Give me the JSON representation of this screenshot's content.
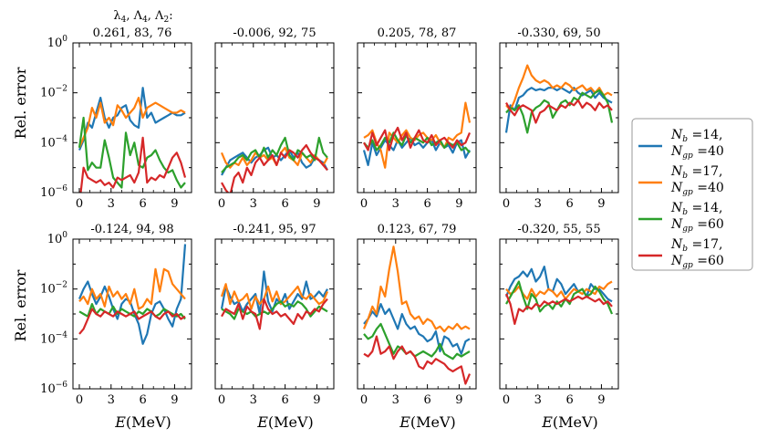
{
  "figure": {
    "ylabel_top": "Rel. error",
    "ylabel_bottom": "Rel. error",
    "xlabel_1": "E(MeV)",
    "xlabel_2": "E(MeV)",
    "xlabel_3": "E(MeV)",
    "xlabel_4": "E(MeV)",
    "header_line1": "λ4, Λ4, Λ2:",
    "header_line2": "0.261, 83, 76"
  },
  "legend": {
    "items": [
      {
        "line1": "Nb =14,",
        "line2": "Ngp =40",
        "color": "#1f77b4"
      },
      {
        "line1": "Nb =17,",
        "line2": "Ngp =40",
        "color": "#ff7f0e"
      },
      {
        "line1": "Nb =14,",
        "line2": "Ngp =60",
        "color": "#2ca02c"
      },
      {
        "line1": "Nb =17,",
        "line2": "Ngp =60",
        "color": "#d62728"
      }
    ]
  },
  "chart_data": {
    "type": "line",
    "yscale": "log",
    "ylim": [
      1e-06,
      1
    ],
    "xlim": [
      -0.6,
      10.6
    ],
    "xticks": [
      0,
      3,
      6,
      9
    ],
    "ytick_labels": [
      "10^0",
      "10^-2",
      "10^-4",
      "10^-6"
    ],
    "ylabel": "Rel. error",
    "xlabel": "E(MeV)",
    "x": [
      0,
      0.4,
      0.8,
      1.2,
      1.6,
      2,
      2.4,
      2.8,
      3.2,
      3.6,
      4,
      4.4,
      4.8,
      5.2,
      5.6,
      6,
      6.4,
      6.8,
      7.2,
      7.6,
      8,
      8.4,
      8.8,
      9.2,
      9.6,
      10
    ],
    "series_names": [
      "Nb=14, Ngp=40",
      "Nb=17, Ngp=40",
      "Nb=14, Ngp=60",
      "Nb=17, Ngp=60"
    ],
    "panels": [
      {
        "title": "0.261, 83, 76",
        "series": [
          [
            -4.3,
            -3.9,
            -3.2,
            -3.4,
            -2.8,
            -2.2,
            -3.0,
            -3.4,
            -3.0,
            -2.9,
            -2.6,
            -2.5,
            -3.1,
            -3.3,
            -3.4,
            -1.8,
            -3.0,
            -2.8,
            -3.2,
            -3.1,
            -3.0,
            -2.9,
            -2.8,
            -2.9,
            -2.9,
            -2.8
          ],
          [
            -4.2,
            -3.8,
            -3.4,
            -2.6,
            -3.0,
            -2.4,
            -3.2,
            -3.0,
            -3.3,
            -2.5,
            -2.7,
            -3.0,
            -2.8,
            -2.6,
            -2.2,
            -3.0,
            -2.6,
            -2.5,
            -2.4,
            -2.5,
            -2.6,
            -2.7,
            -2.8,
            -2.8,
            -2.7,
            -2.8
          ],
          [
            -4.2,
            -3.0,
            -5.1,
            -4.8,
            -5.0,
            -5.0,
            -3.9,
            -4.6,
            -5.4,
            -5.6,
            -5.8,
            -3.6,
            -4.5,
            -4.0,
            -4.9,
            -5.0,
            -4.6,
            -4.5,
            -4.3,
            -4.7,
            -5.0,
            -5.2,
            -5.1,
            -5.5,
            -5.8,
            -5.6
          ],
          [
            -6.5,
            -5.0,
            -5.4,
            -5.5,
            -5.6,
            -5.5,
            -5.7,
            -5.6,
            -5.8,
            -5.4,
            -5.5,
            -5.4,
            -5.3,
            -5.6,
            -5.2,
            -3.8,
            -5.6,
            -5.4,
            -5.5,
            -5.3,
            -5.4,
            -5.0,
            -4.6,
            -4.4,
            -4.8,
            -5.4
          ]
        ]
      },
      {
        "title": "-0.006, 92, 75",
        "series": [
          [
            -5.3,
            -5.0,
            -4.7,
            -4.6,
            -4.5,
            -4.4,
            -4.6,
            -4.8,
            -4.6,
            -4.5,
            -4.3,
            -4.2,
            -4.6,
            -4.5,
            -4.7,
            -4.5,
            -4.3,
            -4.6,
            -4.4,
            -4.8,
            -5.0,
            -4.9,
            -4.6,
            -4.7,
            -4.8,
            -5.1
          ],
          [
            -4.4,
            -4.8,
            -5.0,
            -4.8,
            -4.9,
            -4.6,
            -4.9,
            -4.7,
            -4.4,
            -4.6,
            -4.5,
            -4.7,
            -4.6,
            -4.9,
            -4.4,
            -4.2,
            -4.6,
            -4.7,
            -4.9,
            -4.4,
            -4.6,
            -4.8,
            -4.5,
            -4.7,
            -4.9,
            -4.6
          ],
          [
            -5.2,
            -5.0,
            -4.9,
            -4.8,
            -4.6,
            -4.5,
            -4.7,
            -4.4,
            -4.3,
            -4.6,
            -4.2,
            -4.6,
            -4.3,
            -4.5,
            -4.1,
            -3.8,
            -4.5,
            -4.7,
            -4.3,
            -4.4,
            -4.6,
            -4.5,
            -4.7,
            -3.8,
            -4.4,
            -4.6
          ],
          [
            -5.6,
            -5.9,
            -6.1,
            -5.4,
            -5.2,
            -5.6,
            -5.0,
            -5.3,
            -4.8,
            -4.6,
            -4.9,
            -4.7,
            -4.5,
            -4.9,
            -4.4,
            -4.6,
            -4.3,
            -4.4,
            -4.6,
            -4.3,
            -4.1,
            -4.4,
            -4.6,
            -4.7,
            -4.9,
            -5.1
          ]
        ]
      },
      {
        "title": "0.205, 78, 87",
        "series": [
          [
            -4.3,
            -4.9,
            -4.0,
            -4.5,
            -4.2,
            -3.9,
            -4.1,
            -4.3,
            -3.9,
            -4.2,
            -4.0,
            -3.8,
            -4.1,
            -4.0,
            -4.2,
            -4.0,
            -3.9,
            -4.3,
            -4.0,
            -4.2,
            -4.1,
            -4.4,
            -4.0,
            -3.9,
            -4.6,
            -4.3
          ],
          [
            -3.8,
            -3.7,
            -3.5,
            -4.0,
            -4.3,
            -5.0,
            -3.6,
            -3.8,
            -4.0,
            -3.7,
            -3.5,
            -3.8,
            -3.9,
            -3.7,
            -3.6,
            -3.8,
            -3.9,
            -3.7,
            -4.0,
            -4.2,
            -3.8,
            -3.9,
            -3.7,
            -3.6,
            -2.4,
            -3.2
          ],
          [
            -4.0,
            -4.2,
            -3.9,
            -4.3,
            -4.1,
            -3.8,
            -4.0,
            -3.6,
            -3.9,
            -4.1,
            -3.7,
            -4.0,
            -3.8,
            -3.9,
            -4.0,
            -3.8,
            -4.1,
            -4.0,
            -3.9,
            -4.2,
            -4.0,
            -4.1,
            -4.0,
            -4.3,
            -4.2,
            -4.4
          ],
          [
            -4.0,
            -4.3,
            -3.6,
            -4.1,
            -3.8,
            -3.5,
            -4.3,
            -3.7,
            -3.4,
            -3.9,
            -3.6,
            -4.2,
            -3.8,
            -3.5,
            -3.9,
            -4.0,
            -3.7,
            -4.1,
            -3.9,
            -3.8,
            -4.0,
            -4.2,
            -3.9,
            -4.1,
            -4.0,
            -3.6
          ]
        ]
      },
      {
        "title": "-0.330, 69, 50",
        "series": [
          [
            -3.6,
            -2.5,
            -2.7,
            -2.2,
            -2.1,
            -1.9,
            -1.8,
            -1.9,
            -1.85,
            -1.9,
            -1.8,
            -1.8,
            -1.9,
            -1.8,
            -1.9,
            -2.0,
            -1.8,
            -2.0,
            -2.1,
            -2.0,
            -1.9,
            -2.2,
            -2.0,
            -2.2,
            -2.3,
            -2.4
          ],
          [
            -2.5,
            -2.7,
            -2.3,
            -1.8,
            -1.4,
            -0.9,
            -1.3,
            -1.5,
            -1.6,
            -1.5,
            -1.6,
            -1.8,
            -1.7,
            -1.8,
            -1.6,
            -1.7,
            -1.9,
            -1.8,
            -1.7,
            -1.9,
            -1.8,
            -2.0,
            -1.8,
            -2.1,
            -2.0,
            -2.1
          ],
          [
            -2.8,
            -2.6,
            -2.7,
            -2.5,
            -2.9,
            -3.6,
            -2.8,
            -2.6,
            -2.5,
            -2.3,
            -2.4,
            -3.0,
            -2.7,
            -2.4,
            -2.3,
            -2.5,
            -2.2,
            -2.3,
            -2.0,
            -2.1,
            -2.2,
            -2.0,
            -1.9,
            -2.1,
            -2.4,
            -3.2
          ],
          [
            -2.4,
            -2.7,
            -2.9,
            -2.6,
            -2.5,
            -2.6,
            -2.7,
            -3.2,
            -2.8,
            -2.7,
            -2.5,
            -2.6,
            -2.7,
            -2.5,
            -2.6,
            -2.4,
            -2.5,
            -2.3,
            -2.6,
            -2.4,
            -2.5,
            -2.7,
            -2.4,
            -2.6,
            -2.5,
            -2.7
          ]
        ]
      },
      {
        "title": "-0.124, 94, 98",
        "series": [
          [
            -2.4,
            -2.0,
            -1.7,
            -2.2,
            -2.6,
            -2.3,
            -1.9,
            -2.3,
            -2.8,
            -3.2,
            -2.6,
            -2.4,
            -2.5,
            -3.0,
            -3.4,
            -4.2,
            -3.8,
            -3.0,
            -2.6,
            -2.5,
            -2.8,
            -3.2,
            -3.5,
            -2.8,
            -2.4,
            -0.2
          ],
          [
            -2.5,
            -2.3,
            -2.6,
            -2.0,
            -2.4,
            -2.2,
            -2.7,
            -1.9,
            -2.3,
            -2.1,
            -2.4,
            -2.2,
            -2.6,
            -2.0,
            -2.8,
            -2.7,
            -2.4,
            -2.6,
            -1.2,
            -2.1,
            -1.2,
            -1.3,
            -1.8,
            -2.0,
            -2.2,
            -2.4
          ],
          [
            -2.9,
            -3.0,
            -3.1,
            -2.6,
            -3.0,
            -2.8,
            -2.9,
            -3.0,
            -2.7,
            -3.0,
            -2.8,
            -2.9,
            -3.0,
            -3.1,
            -2.9,
            -3.0,
            -2.8,
            -2.9,
            -3.1,
            -3.0,
            -2.8,
            -2.9,
            -3.0,
            -3.1,
            -3.0,
            -3.2
          ],
          [
            -3.8,
            -3.6,
            -3.2,
            -2.8,
            -3.0,
            -3.1,
            -2.9,
            -3.0,
            -3.1,
            -2.9,
            -3.0,
            -3.1,
            -3.0,
            -2.9,
            -3.2,
            -3.1,
            -3.0,
            -2.9,
            -3.1,
            -3.2,
            -3.0,
            -2.9,
            -3.1,
            -3.0,
            -3.2,
            -3.1
          ]
        ]
      },
      {
        "title": "-0.241, 95, 97",
        "series": [
          [
            -2.8,
            -1.9,
            -2.3,
            -2.6,
            -2.5,
            -2.9,
            -2.6,
            -2.4,
            -2.2,
            -3.0,
            -1.3,
            -2.5,
            -2.9,
            -2.4,
            -2.6,
            -2.2,
            -2.8,
            -2.5,
            -2.2,
            -2.4,
            -1.7,
            -2.4,
            -2.3,
            -2.1,
            -2.3,
            -2.0
          ],
          [
            -2.3,
            -1.8,
            -2.6,
            -2.1,
            -2.5,
            -2.4,
            -2.2,
            -2.8,
            -2.3,
            -2.6,
            -2.4,
            -1.9,
            -2.5,
            -2.1,
            -2.6,
            -2.5,
            -2.3,
            -2.1,
            -1.9,
            -2.3,
            -2.4,
            -2.2,
            -2.4,
            -2.6,
            -2.5,
            -2.1
          ],
          [
            -2.8,
            -2.9,
            -3.0,
            -3.2,
            -2.8,
            -2.9,
            -3.0,
            -2.9,
            -3.1,
            -3.0,
            -2.9,
            -3.0,
            -2.8,
            -2.6,
            -2.5,
            -2.7,
            -2.6,
            -2.7,
            -2.5,
            -2.6,
            -2.8,
            -3.1,
            -2.9,
            -2.7,
            -2.8,
            -2.9
          ],
          [
            -3.1,
            -2.8,
            -2.9,
            -3.0,
            -2.6,
            -3.2,
            -2.7,
            -2.9,
            -3.0,
            -3.6,
            -2.4,
            -2.8,
            -3.0,
            -2.9,
            -3.1,
            -3.0,
            -3.2,
            -3.4,
            -3.0,
            -3.2,
            -2.9,
            -3.0,
            -2.8,
            -2.9,
            -2.6,
            -2.4
          ]
        ]
      },
      {
        "title": "0.123, 67, 79",
        "series": [
          [
            -3.4,
            -3.2,
            -2.9,
            -3.1,
            -2.6,
            -3.0,
            -2.8,
            -3.2,
            -3.6,
            -3.0,
            -3.4,
            -3.6,
            -3.5,
            -3.8,
            -3.9,
            -4.1,
            -4.0,
            -3.7,
            -4.5,
            -3.9,
            -4.0,
            -4.3,
            -4.2,
            -4.6,
            -4.1,
            -4.0
          ],
          [
            -3.6,
            -3.2,
            -2.7,
            -3.0,
            -1.9,
            -2.3,
            -1.2,
            -0.3,
            -1.3,
            -2.6,
            -2.5,
            -3.0,
            -3.2,
            -3.1,
            -3.4,
            -3.2,
            -3.3,
            -3.6,
            -3.5,
            -3.7,
            -3.5,
            -3.6,
            -3.4,
            -3.6,
            -3.5,
            -3.6
          ],
          [
            -3.8,
            -4.0,
            -3.9,
            -3.6,
            -3.4,
            -3.8,
            -4.2,
            -4.6,
            -4.3,
            -4.4,
            -4.6,
            -4.5,
            -4.7,
            -4.6,
            -4.5,
            -4.6,
            -4.7,
            -4.5,
            -4.2,
            -4.6,
            -4.7,
            -4.8,
            -4.6,
            -4.7,
            -4.6,
            -4.5
          ],
          [
            -4.6,
            -4.7,
            -4.5,
            -3.9,
            -4.6,
            -4.5,
            -4.3,
            -4.8,
            -4.5,
            -4.3,
            -4.6,
            -4.5,
            -4.7,
            -5.1,
            -5.2,
            -4.9,
            -5.0,
            -4.8,
            -4.9,
            -5.0,
            -5.2,
            -5.3,
            -5.2,
            -5.1,
            -5.8,
            -5.4
          ]
        ]
      },
      {
        "title": "-0.320, 55, 55",
        "series": [
          [
            -2.3,
            -1.9,
            -1.6,
            -1.5,
            -1.3,
            -1.5,
            -1.2,
            -1.7,
            -1.5,
            -1.1,
            -2.0,
            -2.1,
            -1.6,
            -1.8,
            -2.2,
            -2.0,
            -1.8,
            -2.1,
            -2.0,
            -2.3,
            -1.8,
            -2.0,
            -2.0,
            -2.2,
            -2.4,
            -2.5
          ],
          [
            -2.0,
            -2.2,
            -2.1,
            -1.9,
            -2.2,
            -2.4,
            -2.0,
            -2.3,
            -2.1,
            -2.2,
            -2.0,
            -2.1,
            -2.3,
            -2.1,
            -2.4,
            -2.2,
            -2.0,
            -2.1,
            -2.2,
            -2.0,
            -2.1,
            -2.2,
            -1.9,
            -2.0,
            -1.8,
            -1.7
          ],
          [
            -2.6,
            -2.3,
            -2.0,
            -1.7,
            -2.3,
            -2.8,
            -2.2,
            -2.4,
            -2.9,
            -2.7,
            -2.6,
            -2.8,
            -2.5,
            -2.7,
            -2.4,
            -2.6,
            -2.2,
            -2.1,
            -2.0,
            -2.3,
            -2.2,
            -1.9,
            -2.1,
            -2.4,
            -2.6,
            -3.0
          ],
          [
            -2.2,
            -2.6,
            -3.4,
            -2.8,
            -2.9,
            -2.7,
            -2.8,
            -2.6,
            -2.7,
            -2.5,
            -2.6,
            -2.5,
            -2.6,
            -2.5,
            -2.4,
            -2.5,
            -2.4,
            -2.3,
            -2.4,
            -2.3,
            -2.4,
            -2.5,
            -2.4,
            -2.6,
            -2.5,
            -2.7
          ]
        ]
      }
    ]
  }
}
